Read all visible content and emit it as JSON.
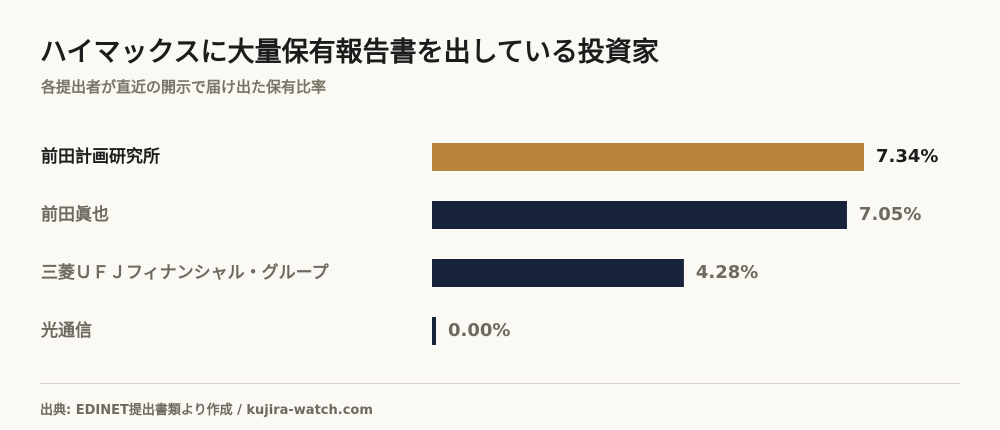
{
  "header": {
    "title": "ハイマックスに大量保有報告書を出している投資家",
    "subtitle": "各提出者が直近の開示で届け出た保有比率"
  },
  "colors": {
    "background": "#fbf9f4",
    "highlight_bar": "#b8843c",
    "bar": "#17223b",
    "highlight_text": "#1c1c1c",
    "muted_text": "#6f6a60"
  },
  "chart_data": {
    "type": "bar",
    "orientation": "horizontal",
    "title": "ハイマックスに大量保有報告書を出している投資家",
    "subtitle": "各提出者が直近の開示で届け出た保有比率",
    "categories": [
      "前田計画研究所",
      "前田眞也",
      "三菱ＵＦＪフィナンシャル・グループ",
      "光通信"
    ],
    "values": [
      7.34,
      7.05,
      4.28,
      0.0
    ],
    "value_labels": [
      "7.34%",
      "7.05%",
      "4.28%",
      "0.00%"
    ],
    "highlight_index": 0,
    "xlim": [
      0,
      7.34
    ],
    "grid": false,
    "legend": "none"
  },
  "footer": {
    "source": "出典: EDINET提出書類より作成 / kujira-watch.com"
  }
}
